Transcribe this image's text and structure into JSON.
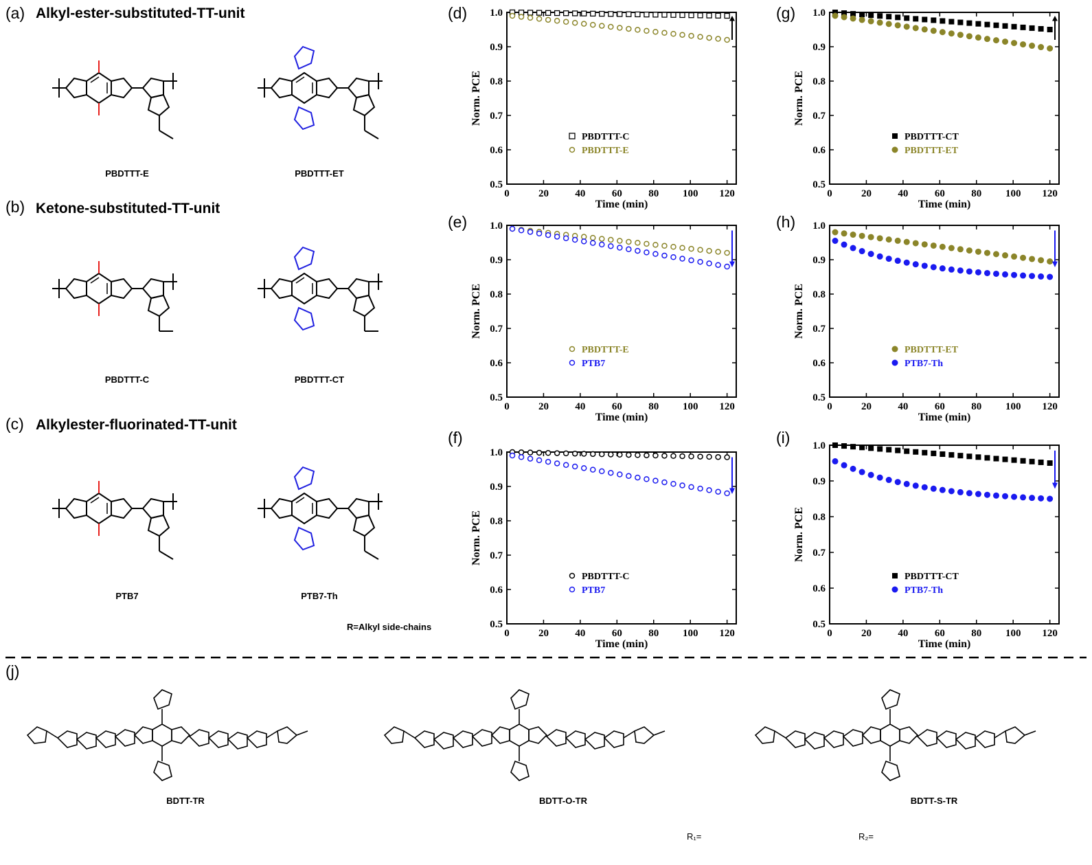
{
  "sections": [
    {
      "label": "(a)",
      "title": "Alkyl-ester-substituted-TT-unit",
      "molecules": [
        "PBDTTT-E",
        "PBDTTT-ET"
      ]
    },
    {
      "label": "(b)",
      "title": "Ketone-substituted-TT-unit",
      "molecules": [
        "PBDTTT-C",
        "PBDTTT-CT"
      ]
    },
    {
      "label": "(c)",
      "title": "Alkylester-fluorinated-TT-unit",
      "molecules": [
        "PTB7",
        "PTB7-Th"
      ]
    }
  ],
  "r_note": "R=Alkyl side-chains",
  "section_j": {
    "label": "(j)",
    "molecules": [
      "BDTT-TR",
      "BDTT-O-TR",
      "BDTT-S-TR"
    ],
    "r1_label": "R₁=",
    "r2_label": "R₂="
  },
  "colors": {
    "red_group": "#e8201c",
    "blue_group": "#1f1fe0",
    "olive": "#8b8529",
    "blue_series": "#1a1af0",
    "black": "#000000"
  },
  "chart_data": [
    {
      "panel": "(d)",
      "type": "scatter",
      "xlabel": "Time (min)",
      "ylabel": "Norm. PCE",
      "xlim": [
        0,
        125
      ],
      "ylim": [
        0.5,
        1.0
      ],
      "xticks": [
        "0",
        "20",
        "40",
        "60",
        "80",
        "100",
        "120"
      ],
      "yticks": [
        "0.5",
        "0.6",
        "0.7",
        "0.8",
        "0.9",
        "1.0"
      ],
      "arrow": "up",
      "series": [
        {
          "name": "PBDTTT-C",
          "marker": "open-square",
          "color": "#000000",
          "start": 1.0,
          "end": 0.99,
          "shape": "linear"
        },
        {
          "name": "PBDTTT-E",
          "marker": "open-circle",
          "color": "#8b8529",
          "start": 0.99,
          "end": 0.92,
          "shape": "linear"
        }
      ]
    },
    {
      "panel": "(e)",
      "type": "scatter",
      "xlabel": "Time (min)",
      "ylabel": "Norm. PCE",
      "xlim": [
        0,
        125
      ],
      "ylim": [
        0.5,
        1.0
      ],
      "xticks": [
        "0",
        "20",
        "40",
        "60",
        "80",
        "100",
        "120"
      ],
      "yticks": [
        "0.5",
        "0.6",
        "0.7",
        "0.8",
        "0.9",
        "1.0"
      ],
      "arrow": "down",
      "series": [
        {
          "name": "PBDTTT-E",
          "marker": "open-circle-olive",
          "color": "#8b8529",
          "start": 0.99,
          "end": 0.92,
          "shape": "linear"
        },
        {
          "name": "PTB7",
          "marker": "open-circle",
          "color": "#1a1af0",
          "start": 0.99,
          "end": 0.88,
          "shape": "linear"
        }
      ]
    },
    {
      "panel": "(f)",
      "type": "scatter",
      "xlabel": "Time (min)",
      "ylabel": "Norm. PCE",
      "xlim": [
        0,
        125
      ],
      "ylim": [
        0.5,
        1.0
      ],
      "xticks": [
        "0",
        "20",
        "40",
        "60",
        "80",
        "100",
        "120"
      ],
      "yticks": [
        "0.5",
        "0.6",
        "0.7",
        "0.8",
        "0.9",
        "1.0"
      ],
      "arrow": "down",
      "series": [
        {
          "name": "PBDTTT-C",
          "marker": "open-circle",
          "color": "#000000",
          "start": 1.0,
          "end": 0.985,
          "shape": "linear"
        },
        {
          "name": "PTB7",
          "marker": "open-circle",
          "color": "#1a1af0",
          "start": 0.99,
          "end": 0.88,
          "shape": "linear"
        }
      ]
    },
    {
      "panel": "(g)",
      "type": "scatter",
      "xlabel": "Time (min)",
      "ylabel": "Norm. PCE",
      "xlim": [
        0,
        125
      ],
      "ylim": [
        0.5,
        1.0
      ],
      "xticks": [
        "0",
        "20",
        "40",
        "60",
        "80",
        "100",
        "120"
      ],
      "yticks": [
        "0.5",
        "0.6",
        "0.7",
        "0.8",
        "0.9",
        "1.0"
      ],
      "arrow": "up",
      "series": [
        {
          "name": "PBDTTT-CT",
          "marker": "filled-square",
          "color": "#000000",
          "start": 1.0,
          "end": 0.95,
          "shape": "linear"
        },
        {
          "name": "PBDTTT-ET",
          "marker": "filled-circle",
          "color": "#8b8529",
          "start": 0.99,
          "end": 0.895,
          "shape": "linear"
        }
      ]
    },
    {
      "panel": "(h)",
      "type": "scatter",
      "xlabel": "Time (min)",
      "ylabel": "Norm. PCE",
      "xlim": [
        0,
        125
      ],
      "ylim": [
        0.5,
        1.0
      ],
      "xticks": [
        "0",
        "20",
        "40",
        "60",
        "80",
        "100",
        "120"
      ],
      "yticks": [
        "0.5",
        "0.6",
        "0.7",
        "0.8",
        "0.9",
        "1.0"
      ],
      "arrow": "down",
      "series": [
        {
          "name": "PBDTTT-ET",
          "marker": "filled-circle",
          "color": "#8b8529",
          "start": 0.98,
          "end": 0.895,
          "shape": "linear"
        },
        {
          "name": "PTB7-Th",
          "marker": "filled-circle",
          "color": "#1a1af0",
          "start": 0.955,
          "end": 0.85,
          "shape": "decay"
        }
      ]
    },
    {
      "panel": "(i)",
      "type": "scatter",
      "xlabel": "Time (min)",
      "ylabel": "Norm. PCE",
      "xlim": [
        0,
        125
      ],
      "ylim": [
        0.5,
        1.0
      ],
      "xticks": [
        "0",
        "20",
        "40",
        "60",
        "80",
        "100",
        "120"
      ],
      "yticks": [
        "0.5",
        "0.6",
        "0.7",
        "0.8",
        "0.9",
        "1.0"
      ],
      "arrow": "down",
      "series": [
        {
          "name": "PBDTTT-CT",
          "marker": "filled-square",
          "color": "#000000",
          "start": 1.0,
          "end": 0.95,
          "shape": "linear"
        },
        {
          "name": "PTB7-Th",
          "marker": "filled-circle",
          "color": "#1a1af0",
          "start": 0.955,
          "end": 0.85,
          "shape": "decay"
        }
      ]
    }
  ]
}
